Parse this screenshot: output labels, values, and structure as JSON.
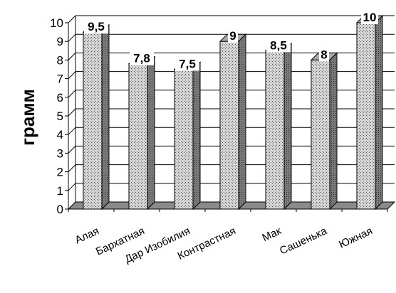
{
  "chart_data": {
    "type": "bar",
    "categories": [
      "Алая",
      "Бархатная",
      "Дар Изобилия",
      "Контрастная",
      "Мак",
      "Сашенька",
      "Южная"
    ],
    "values": [
      9.5,
      7.8,
      7.5,
      9,
      8.5,
      8,
      10
    ],
    "data_labels": [
      "9,5",
      "7,8",
      "7,5",
      "9",
      "8,5",
      "8",
      "10"
    ],
    "xlabel": "",
    "ylabel": "грамм",
    "ylim": [
      0,
      10
    ],
    "yticks": [
      0,
      1,
      2,
      3,
      4,
      5,
      6,
      7,
      8,
      9,
      10
    ],
    "grid": true,
    "legend": "none",
    "style": "3d-column, patterned fill",
    "colors": {
      "bar_face": "#c8c8c8",
      "bar_side": "#6e6e6e",
      "floor": "#8a8a8a",
      "grid": "#000000"
    }
  }
}
